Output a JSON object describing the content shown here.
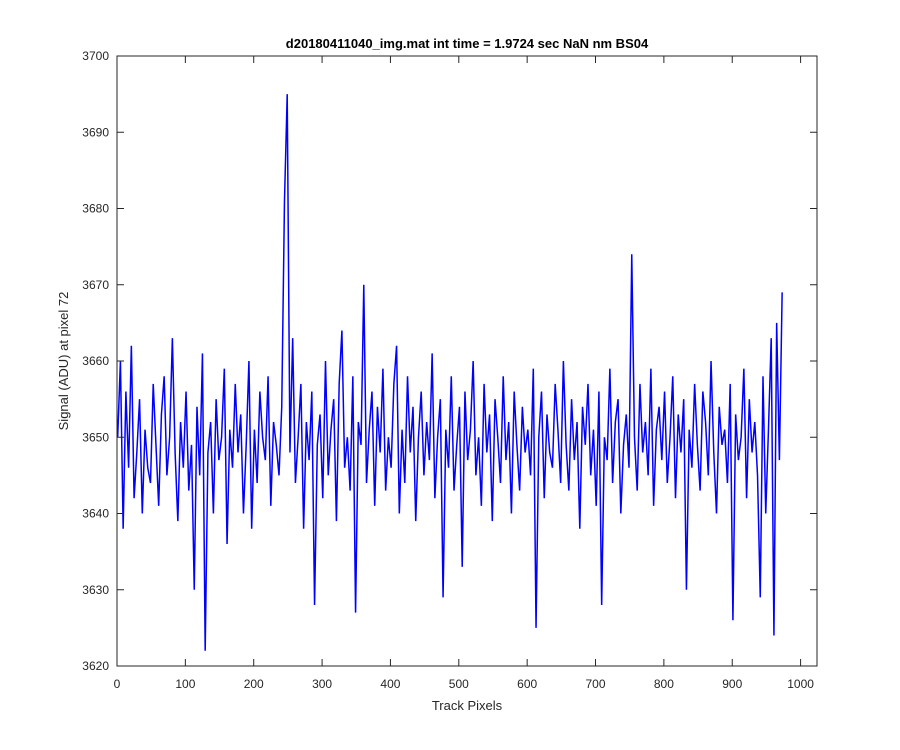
{
  "chart_data": {
    "type": "line",
    "title": "d20180411040_img.mat int time = 1.9724 sec  NaN nm BS04",
    "xlabel": "Track Pixels",
    "ylabel": "Signal (ADU) at pixel 72",
    "xlim": [
      0,
      1024
    ],
    "ylim": [
      3620,
      3700
    ],
    "xticks": [
      0,
      100,
      200,
      300,
      400,
      500,
      600,
      700,
      800,
      900,
      1000
    ],
    "yticks": [
      3620,
      3630,
      3640,
      3650,
      3660,
      3670,
      3680,
      3690,
      3700
    ],
    "grid": false,
    "series_color": "#0000ff",
    "series": [
      {
        "x_start": 1,
        "x_step": 4,
        "values": [
          3650,
          3660,
          3638,
          3656,
          3646,
          3662,
          3642,
          3648,
          3655,
          3640,
          3651,
          3646,
          3644,
          3657,
          3649,
          3641,
          3653,
          3658,
          3645,
          3650,
          3663,
          3648,
          3639,
          3652,
          3646,
          3656,
          3643,
          3649,
          3630,
          3654,
          3645,
          3661,
          3622,
          3648,
          3652,
          3640,
          3655,
          3647,
          3650,
          3659,
          3636,
          3651,
          3646,
          3657,
          3648,
          3653,
          3640,
          3649,
          3660,
          3638,
          3651,
          3644,
          3656,
          3650,
          3647,
          3658,
          3641,
          3652,
          3649,
          3645,
          3654,
          3681,
          3695,
          3648,
          3663,
          3644,
          3650,
          3657,
          3638,
          3652,
          3647,
          3656,
          3628,
          3649,
          3653,
          3642,
          3660,
          3645,
          3651,
          3655,
          3639,
          3657,
          3664,
          3646,
          3650,
          3643,
          3658,
          3627,
          3652,
          3649,
          3670,
          3644,
          3651,
          3656,
          3641,
          3654,
          3648,
          3659,
          3643,
          3650,
          3646,
          3657,
          3662,
          3640,
          3651,
          3644,
          3658,
          3648,
          3654,
          3639,
          3650,
          3656,
          3645,
          3652,
          3647,
          3661,
          3642,
          3650,
          3655,
          3629,
          3651,
          3646,
          3658,
          3643,
          3649,
          3654,
          3633,
          3656,
          3647,
          3651,
          3660,
          3645,
          3650,
          3641,
          3657,
          3648,
          3653,
          3639,
          3655,
          3650,
          3644,
          3658,
          3647,
          3652,
          3640,
          3656,
          3649,
          3643,
          3654,
          3648,
          3651,
          3645,
          3659,
          3625,
          3650,
          3656,
          3642,
          3653,
          3648,
          3646,
          3657,
          3651,
          3644,
          3660,
          3649,
          3643,
          3655,
          3647,
          3652,
          3638,
          3654,
          3649,
          3657,
          3645,
          3651,
          3641,
          3656,
          3628,
          3650,
          3647,
          3659,
          3644,
          3652,
          3655,
          3640,
          3649,
          3653,
          3646,
          3674,
          3650,
          3643,
          3657,
          3648,
          3652,
          3645,
          3659,
          3641,
          3651,
          3654,
          3647,
          3656,
          3644,
          3650,
          3658,
          3642,
          3653,
          3648,
          3655,
          3630,
          3651,
          3646,
          3657,
          3649,
          3643,
          3656,
          3652,
          3645,
          3660,
          3648,
          3640,
          3654,
          3649,
          3651,
          3644,
          3657,
          3626,
          3653,
          3647,
          3650,
          3659,
          3642,
          3655,
          3648,
          3652,
          3645,
          3629,
          3658,
          3640,
          3651,
          3663,
          3624,
          3665,
          3647,
          3669
        ]
      }
    ]
  }
}
